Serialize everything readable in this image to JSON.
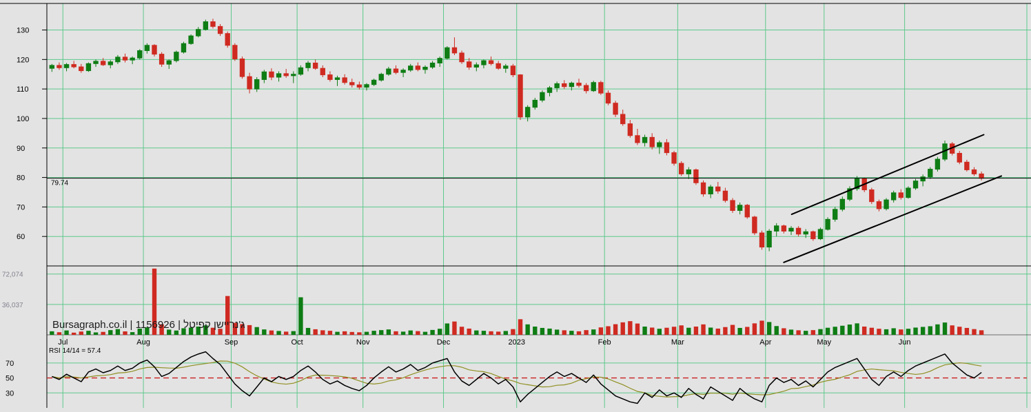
{
  "watermark": {
    "text": "Bursagraph.co.il | 1156926 | ג'נריישן קפיטל"
  },
  "colors": {
    "background": "#e3e3e3",
    "grid": "#5ec98c",
    "up": "#0e7d14",
    "down": "#cf2a21",
    "trendline": "#000000",
    "last_price_line": "#000000",
    "border": "#000000",
    "rsi_line": "#000000",
    "rsi_signal": "#8f8f22",
    "rsi_midline": "#cc1f1f",
    "axis_text": "#000000",
    "volume_axis_text": "#82828f"
  },
  "chart_data": [
    {
      "type": "candlestick",
      "title": "",
      "ylim": [
        50,
        139
      ],
      "yticks": [
        60,
        70,
        80,
        90,
        100,
        110,
        120,
        130
      ],
      "last_price": 79.74,
      "last_price_label": "79.74",
      "month_ticks": [
        {
          "label": "Jul",
          "index": 2
        },
        {
          "label": "Aug",
          "index": 13
        },
        {
          "label": "Sep",
          "index": 25
        },
        {
          "label": "Oct",
          "index": 34
        },
        {
          "label": "Nov",
          "index": 43
        },
        {
          "label": "Dec",
          "index": 54
        },
        {
          "label": "2023",
          "index": 64
        },
        {
          "label": "Feb",
          "index": 76
        },
        {
          "label": "Mar",
          "index": 86
        },
        {
          "label": "Apr",
          "index": 98
        },
        {
          "label": "May",
          "index": 106
        },
        {
          "label": "Jun",
          "index": 117
        }
      ],
      "trendlines": [
        {
          "x1": 0.752,
          "p1": 51.2,
          "x2": 0.974,
          "p2": 80.5
        },
        {
          "x1": 0.76,
          "p1": 67.5,
          "x2": 0.956,
          "p2": 94.5
        }
      ],
      "candles": [
        [
          117.0,
          118.5,
          115.8,
          118.0
        ],
        [
          118.0,
          119.0,
          116.5,
          117.2
        ],
        [
          117.2,
          118.8,
          116.0,
          118.3
        ],
        [
          118.3,
          119.5,
          117.0,
          117.5
        ],
        [
          117.5,
          118.5,
          115.5,
          116.2
        ],
        [
          116.2,
          119.0,
          115.8,
          118.6
        ],
        [
          118.6,
          120.0,
          117.5,
          119.4
        ],
        [
          119.4,
          120.5,
          117.8,
          118.2
        ],
        [
          118.2,
          119.8,
          117.0,
          119.2
        ],
        [
          119.2,
          121.5,
          118.5,
          120.8
        ],
        [
          120.8,
          122.0,
          119.0,
          119.8
        ],
        [
          119.8,
          121.0,
          118.4,
          120.5
        ],
        [
          120.5,
          123.5,
          120.0,
          123.0
        ],
        [
          123.0,
          125.5,
          122.0,
          124.8
        ],
        [
          124.8,
          125.2,
          121.0,
          121.8
        ],
        [
          121.8,
          122.5,
          117.5,
          118.4
        ],
        [
          118.4,
          120.0,
          116.8,
          119.6
        ],
        [
          119.6,
          123.0,
          119.0,
          122.5
        ],
        [
          122.5,
          126.0,
          122.0,
          125.4
        ],
        [
          125.4,
          128.5,
          125.0,
          128.0
        ],
        [
          128.0,
          131.0,
          127.5,
          130.2
        ],
        [
          130.2,
          133.5,
          129.8,
          132.8
        ],
        [
          132.8,
          133.8,
          130.5,
          131.2
        ],
        [
          131.2,
          132.0,
          128.0,
          128.8
        ],
        [
          128.8,
          129.5,
          124.0,
          124.8
        ],
        [
          124.8,
          125.5,
          119.5,
          120.2
        ],
        [
          120.2,
          121.0,
          113.5,
          114.2
        ],
        [
          114.2,
          115.5,
          108.5,
          110.0
        ],
        [
          110.0,
          114.0,
          109.0,
          113.2
        ],
        [
          113.2,
          116.5,
          112.0,
          115.8
        ],
        [
          115.8,
          117.0,
          113.0,
          114.0
        ],
        [
          114.0,
          116.0,
          112.5,
          115.2
        ],
        [
          115.2,
          116.8,
          113.8,
          114.5
        ],
        [
          114.5,
          116.0,
          112.0,
          115.0
        ],
        [
          115.0,
          118.0,
          114.5,
          117.2
        ],
        [
          117.2,
          119.5,
          116.0,
          118.8
        ],
        [
          118.8,
          120.0,
          116.5,
          117.0
        ],
        [
          117.0,
          118.0,
          114.0,
          114.8
        ],
        [
          114.8,
          116.0,
          112.5,
          113.2
        ],
        [
          113.2,
          114.5,
          111.0,
          113.8
        ],
        [
          113.8,
          115.0,
          111.5,
          112.2
        ],
        [
          112.2,
          113.5,
          110.5,
          111.4
        ],
        [
          111.4,
          112.5,
          109.8,
          110.6
        ],
        [
          110.6,
          112.0,
          109.5,
          111.5
        ],
        [
          111.5,
          113.5,
          111.0,
          113.0
        ],
        [
          113.0,
          115.5,
          112.5,
          115.0
        ],
        [
          115.0,
          117.5,
          114.5,
          116.8
        ],
        [
          116.8,
          118.0,
          115.0,
          115.6
        ],
        [
          115.6,
          117.0,
          114.0,
          116.4
        ],
        [
          116.4,
          118.5,
          115.8,
          117.8
        ],
        [
          117.8,
          119.0,
          116.0,
          116.6
        ],
        [
          116.6,
          118.0,
          115.2,
          117.4
        ],
        [
          117.4,
          119.5,
          116.8,
          118.8
        ],
        [
          118.8,
          121.0,
          117.5,
          120.4
        ],
        [
          120.4,
          124.5,
          120.0,
          124.0
        ],
        [
          124.0,
          127.5,
          121.5,
          122.2
        ],
        [
          122.2,
          123.0,
          118.5,
          119.2
        ],
        [
          119.2,
          120.5,
          116.5,
          117.4
        ],
        [
          117.4,
          119.0,
          116.0,
          118.2
        ],
        [
          118.2,
          120.0,
          117.0,
          119.6
        ],
        [
          119.6,
          121.0,
          118.0,
          118.6
        ],
        [
          118.6,
          119.5,
          116.5,
          117.0
        ],
        [
          117.0,
          118.5,
          115.5,
          117.8
        ],
        [
          117.8,
          118.5,
          114.0,
          114.8
        ],
        [
          114.8,
          115.0,
          99.5,
          100.5
        ],
        [
          100.5,
          104.5,
          99.0,
          103.8
        ],
        [
          103.8,
          107.0,
          103.0,
          106.2
        ],
        [
          106.2,
          109.5,
          105.5,
          108.8
        ],
        [
          108.8,
          111.0,
          107.5,
          110.4
        ],
        [
          110.4,
          112.5,
          109.0,
          111.8
        ],
        [
          111.8,
          113.0,
          110.0,
          110.8
        ],
        [
          110.8,
          112.5,
          109.5,
          112.0
        ],
        [
          112.0,
          113.5,
          110.5,
          111.2
        ],
        [
          111.2,
          112.0,
          108.5,
          109.4
        ],
        [
          109.4,
          112.8,
          109.0,
          112.2
        ],
        [
          112.2,
          112.8,
          108.0,
          108.6
        ],
        [
          108.6,
          109.5,
          104.5,
          105.2
        ],
        [
          105.2,
          106.0,
          100.5,
          101.4
        ],
        [
          101.4,
          103.0,
          97.5,
          98.2
        ],
        [
          98.2,
          99.5,
          93.5,
          94.2
        ],
        [
          94.2,
          96.5,
          91.0,
          91.8
        ],
        [
          91.8,
          94.5,
          90.5,
          93.6
        ],
        [
          93.6,
          95.0,
          89.5,
          90.4
        ],
        [
          90.4,
          92.5,
          88.0,
          91.8
        ],
        [
          91.8,
          93.0,
          87.5,
          88.4
        ],
        [
          88.4,
          89.0,
          84.0,
          84.8
        ],
        [
          84.8,
          85.5,
          80.5,
          81.2
        ],
        [
          81.2,
          83.5,
          79.5,
          82.6
        ],
        [
          82.6,
          83.0,
          77.5,
          78.2
        ],
        [
          78.2,
          79.0,
          73.5,
          74.4
        ],
        [
          74.4,
          77.5,
          73.0,
          76.8
        ],
        [
          76.8,
          78.5,
          74.5,
          75.4
        ],
        [
          75.4,
          76.5,
          71.5,
          72.2
        ],
        [
          72.2,
          73.0,
          68.0,
          68.8
        ],
        [
          68.8,
          71.5,
          67.5,
          70.6
        ],
        [
          70.6,
          71.0,
          66.0,
          66.6
        ],
        [
          66.6,
          67.0,
          60.5,
          61.2
        ],
        [
          61.2,
          62.0,
          55.5,
          56.4
        ],
        [
          56.4,
          62.5,
          55.0,
          61.8
        ],
        [
          61.8,
          64.5,
          60.0,
          63.6
        ],
        [
          63.6,
          64.0,
          61.0,
          61.8
        ],
        [
          61.8,
          63.5,
          60.5,
          62.8
        ],
        [
          62.8,
          63.5,
          60.0,
          60.8
        ],
        [
          60.8,
          62.5,
          59.5,
          61.6
        ],
        [
          61.6,
          62.0,
          58.5,
          59.2
        ],
        [
          59.2,
          63.0,
          58.8,
          62.4
        ],
        [
          62.4,
          66.5,
          62.0,
          65.8
        ],
        [
          65.8,
          70.0,
          65.0,
          69.2
        ],
        [
          69.2,
          73.5,
          68.5,
          72.6
        ],
        [
          72.6,
          77.0,
          72.0,
          76.2
        ],
        [
          76.2,
          80.5,
          75.5,
          79.6
        ],
        [
          79.6,
          80.0,
          75.0,
          75.8
        ],
        [
          75.8,
          76.5,
          71.0,
          71.8
        ],
        [
          71.8,
          72.5,
          68.5,
          69.4
        ],
        [
          69.4,
          73.0,
          68.8,
          72.4
        ],
        [
          72.4,
          75.5,
          71.5,
          74.8
        ],
        [
          74.8,
          76.0,
          72.5,
          73.2
        ],
        [
          73.2,
          77.0,
          72.8,
          76.4
        ],
        [
          76.4,
          79.5,
          75.8,
          78.8
        ],
        [
          78.8,
          81.0,
          77.0,
          80.2
        ],
        [
          80.2,
          83.5,
          79.5,
          82.8
        ],
        [
          82.8,
          87.0,
          82.0,
          86.2
        ],
        [
          86.2,
          92.5,
          85.5,
          91.4
        ],
        [
          91.4,
          92.0,
          87.5,
          88.2
        ],
        [
          88.2,
          89.0,
          84.5,
          85.2
        ],
        [
          85.2,
          86.0,
          82.0,
          82.6
        ],
        [
          82.6,
          83.5,
          80.5,
          81.2
        ],
        [
          81.2,
          82.0,
          79.0,
          79.74
        ]
      ]
    },
    {
      "type": "bar",
      "title": "Volume",
      "ymax": 80000,
      "yticks": [
        {
          "label": "72,074",
          "value": 72074
        },
        {
          "label": "36,037",
          "value": 36037
        }
      ],
      "values": [
        4200,
        3100,
        5200,
        2600,
        3900,
        4800,
        2900,
        3500,
        5600,
        6800,
        4100,
        3200,
        7400,
        8900,
        78500,
        12500,
        6200,
        5100,
        7800,
        8600,
        9800,
        11200,
        8400,
        7200,
        46000,
        14200,
        12800,
        11500,
        9200,
        6400,
        5200,
        4600,
        3800,
        4400,
        44500,
        8200,
        6600,
        5400,
        4800,
        3600,
        4200,
        3400,
        3000,
        3600,
        4800,
        5600,
        6400,
        4200,
        3800,
        5200,
        4400,
        3600,
        5800,
        7200,
        13500,
        15800,
        9600,
        7400,
        5200,
        4800,
        4200,
        3800,
        4600,
        6800,
        18500,
        12400,
        9800,
        8200,
        7400,
        6200,
        5400,
        4800,
        4200,
        5600,
        6400,
        8800,
        10200,
        12600,
        14800,
        16200,
        13400,
        9800,
        8600,
        7200,
        8400,
        9600,
        11200,
        8400,
        9800,
        12400,
        8600,
        7400,
        9200,
        11800,
        8200,
        9400,
        13600,
        16800,
        15200,
        10400,
        7800,
        6200,
        5400,
        4800,
        5600,
        6800,
        8400,
        9600,
        10800,
        12200,
        13600,
        9800,
        8400,
        7200,
        6600,
        7800,
        6400,
        7200,
        8600,
        9400,
        10200,
        12400,
        14600,
        11200,
        9600,
        8200,
        6800,
        5400
      ]
    },
    {
      "type": "line",
      "label": "RSI 14/14 = 57.4",
      "ylim": [
        10,
        92
      ],
      "yticks": [
        70,
        50,
        30
      ],
      "midline": 50,
      "values": [
        52,
        48,
        55,
        50,
        45,
        58,
        62,
        57,
        60,
        66,
        60,
        63,
        70,
        74,
        65,
        52,
        56,
        64,
        72,
        78,
        82,
        85,
        76,
        68,
        55,
        42,
        33,
        26,
        38,
        50,
        45,
        52,
        48,
        52,
        60,
        66,
        58,
        48,
        42,
        46,
        40,
        36,
        33,
        40,
        50,
        58,
        65,
        58,
        62,
        68,
        60,
        64,
        70,
        73,
        76,
        58,
        46,
        40,
        48,
        56,
        50,
        42,
        48,
        38,
        18,
        28,
        36,
        44,
        52,
        58,
        52,
        56,
        50,
        44,
        54,
        42,
        34,
        26,
        22,
        18,
        16,
        30,
        24,
        34,
        26,
        30,
        24,
        36,
        28,
        22,
        38,
        32,
        26,
        20,
        36,
        28,
        22,
        18,
        40,
        50,
        44,
        48,
        40,
        46,
        38,
        48,
        58,
        64,
        68,
        72,
        76,
        62,
        48,
        40,
        52,
        58,
        52,
        60,
        66,
        70,
        74,
        78,
        82,
        70,
        62,
        54,
        50,
        57.4
      ]
    }
  ]
}
